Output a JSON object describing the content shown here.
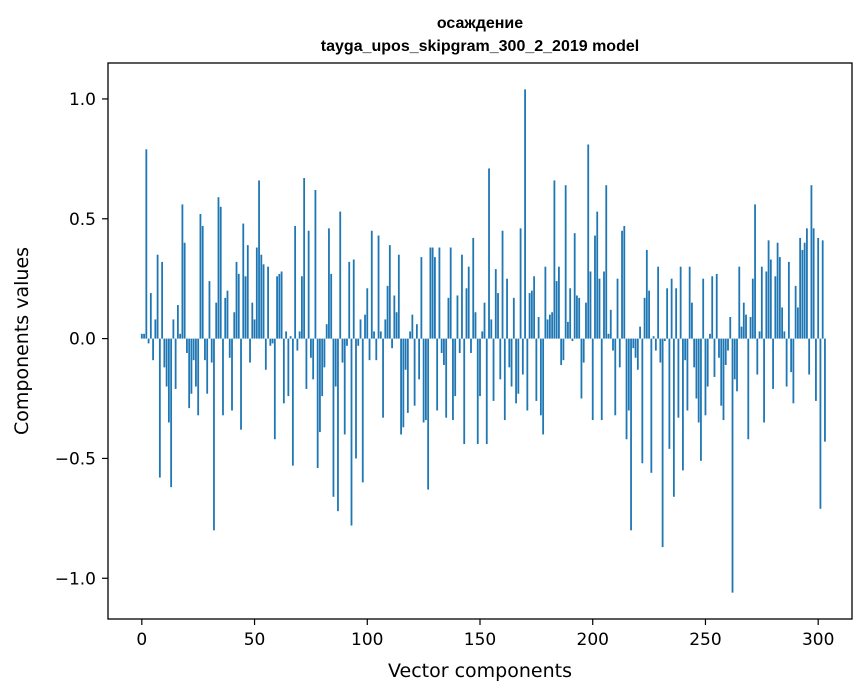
{
  "chart_data": {
    "type": "bar",
    "title": "осаждение",
    "subtitle": "tayga_upos_skipgram_300_2_2019 model",
    "xlabel": "Vector components",
    "ylabel": "Components values",
    "xlim": [
      -15,
      315
    ],
    "ylim": [
      -1.17,
      1.15
    ],
    "xticks": [
      0,
      50,
      100,
      150,
      200,
      250,
      300
    ],
    "yticks": [
      -1.0,
      -0.5,
      0.0,
      0.5,
      1.0
    ],
    "xtick_labels": [
      "0",
      "50",
      "100",
      "150",
      "200",
      "250",
      "300"
    ],
    "ytick_labels": [
      "−1.0",
      "−0.5",
      "0.0",
      "0.5",
      "1.0"
    ],
    "grid": false,
    "bar_color": "#1f77b4",
    "series": [
      {
        "values": [
          0.02,
          0.02,
          0.79,
          -0.02,
          0.19,
          -0.09,
          0.08,
          0.35,
          -0.58,
          0.32,
          -0.12,
          -0.2,
          -0.35,
          -0.62,
          0.08,
          -0.21,
          0.14,
          0.02,
          0.56,
          0.4,
          -0.06,
          -0.29,
          -0.23,
          -0.09,
          -0.2,
          -0.32,
          0.52,
          0.47,
          -0.09,
          -0.23,
          0.24,
          -0.1,
          -0.8,
          0.15,
          0.59,
          0.55,
          -0.32,
          0.17,
          0.2,
          -0.08,
          -0.3,
          0.11,
          0.32,
          0.27,
          -0.38,
          0.48,
          0.26,
          0.39,
          -0.1,
          0.15,
          0.08,
          0.38,
          0.66,
          0.35,
          0.31,
          -0.13,
          0.3,
          -0.03,
          -0.02,
          -0.42,
          0.26,
          0.27,
          0.28,
          -0.27,
          0.03,
          -0.24,
          0.01,
          -0.53,
          0.47,
          -0.05,
          0.03,
          0.26,
          0.67,
          -0.21,
          0.45,
          -0.08,
          -0.17,
          0.62,
          -0.54,
          -0.39,
          -0.24,
          -0.12,
          0.06,
          0.46,
          0.27,
          -0.66,
          -0.2,
          -0.72,
          0.53,
          -0.1,
          -0.4,
          -0.03,
          0.32,
          -0.78,
          0.33,
          -0.5,
          -0.03,
          0.08,
          -0.6,
          0.1,
          0.21,
          -0.09,
          0.45,
          0.03,
          -0.09,
          0.43,
          0.03,
          -0.33,
          0.08,
          0.22,
          0.39,
          -0.04,
          0.18,
          0.11,
          0.35,
          -0.4,
          -0.37,
          -0.13,
          -0.31,
          0.03,
          0.1,
          -0.28,
          0.06,
          -0.17,
          0.34,
          -0.35,
          -0.34,
          -0.63,
          0.38,
          0.38,
          0.34,
          -0.3,
          0.38,
          -0.06,
          -0.11,
          -0.33,
          0.17,
          0.38,
          -0.34,
          -0.24,
          0.18,
          -0.06,
          0.35,
          -0.44,
          0.21,
          0.3,
          -0.06,
          0.42,
          0.11,
          -0.44,
          -0.24,
          0.03,
          0.15,
          -0.44,
          0.71,
          0.08,
          -0.26,
          0.29,
          0.19,
          -0.17,
          0.45,
          -0.34,
          0.25,
          -0.12,
          -0.2,
          0.17,
          -0.27,
          -0.23,
          0.46,
          -0.15,
          1.04,
          -0.3,
          0.19,
          0.2,
          0.26,
          -0.26,
          0.09,
          -0.32,
          -0.4,
          0.3,
          0.08,
          0.1,
          0.11,
          0.66,
          0.24,
          0.3,
          -0.11,
          -0.09,
          0.64,
          0.07,
          0.21,
          -0.01,
          0.44,
          0.18,
          0.17,
          -0.25,
          -0.1,
          0.15,
          0.81,
          0.28,
          -0.34,
          0.43,
          0.53,
          0.25,
          -0.34,
          0.28,
          0.64,
          0.02,
          0.12,
          -0.05,
          -0.32,
          0.25,
          -0.12,
          0.45,
          0.47,
          -0.42,
          -0.3,
          -0.8,
          -0.04,
          -0.08,
          -0.13,
          0.05,
          -0.52,
          0.17,
          0.37,
          0.2,
          -0.56,
          0.01,
          -0.05,
          0.3,
          -0.1,
          -0.87,
          -0.01,
          0.21,
          -0.46,
          0.25,
          -0.66,
          0.21,
          -0.33,
          0.3,
          -0.55,
          -0.09,
          -0.3,
          0.3,
          0.15,
          -0.12,
          -0.25,
          -0.35,
          -0.51,
          0.25,
          -0.32,
          -0.2,
          0.02,
          0.26,
          -0.16,
          0.27,
          -0.08,
          -0.28,
          -0.34,
          -0.11,
          -0.05,
          0.09,
          -1.06,
          -0.17,
          -0.22,
          0.3,
          0.05,
          0.15,
          0.1,
          -0.42,
          0.09,
          0.25,
          0.56,
          -0.15,
          0.03,
          0.3,
          -0.35,
          0.28,
          0.41,
          0.33,
          -0.21,
          0.26,
          0.4,
          0.34,
          0.13,
          0.03,
          -0.2,
          0.32,
          -0.14,
          -0.27,
          0.22,
          0.13,
          0.42,
          0.37,
          0.4,
          0.46,
          -0.15,
          0.64,
          0.46,
          -0.26,
          0.42,
          -0.71,
          0.41,
          -0.43
        ]
      }
    ]
  }
}
